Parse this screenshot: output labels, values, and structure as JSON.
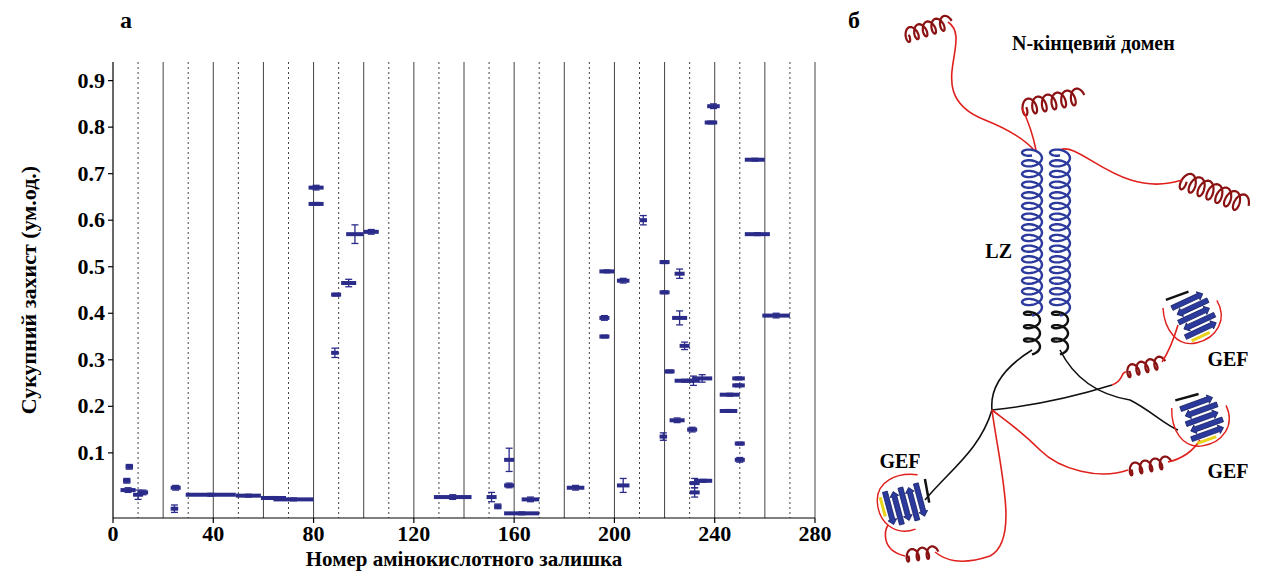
{
  "panel_labels": [
    "а",
    "б"
  ],
  "chart_data": {
    "type": "segment",
    "xlabel": "Номер амінокислотного залишка",
    "ylabel": "Сукупний захист (ум.од.)",
    "color": "#2b2b8a",
    "grid": true,
    "xlim": [
      0,
      280
    ],
    "ylim": [
      -0.04,
      0.94
    ],
    "xticks": [
      0,
      40,
      80,
      120,
      160,
      200,
      240,
      280
    ],
    "yticks": [
      0.1,
      0.2,
      0.3,
      0.4,
      0.5,
      0.6,
      0.7,
      0.8,
      0.9
    ],
    "x_start": [
      4,
      5,
      3,
      8,
      10,
      23,
      23,
      29,
      49,
      59,
      64,
      78,
      78,
      87,
      87,
      91,
      93,
      100,
      128,
      149,
      152,
      156,
      156,
      156,
      163,
      181,
      194,
      194,
      194,
      201,
      201,
      210,
      218,
      218,
      218,
      220,
      224,
      223,
      226,
      222,
      224,
      229,
      229,
      230,
      230,
      231,
      232,
      236,
      237,
      242,
      242,
      247,
      247,
      248,
      248,
      252,
      252,
      259
    ],
    "x_end": [
      7,
      8,
      9,
      12,
      14,
      27,
      26,
      49,
      59,
      69,
      80,
      84,
      84,
      90,
      91,
      97,
      100,
      106,
      143,
      153,
      155,
      160,
      160,
      170,
      170,
      188,
      198,
      198,
      200,
      206,
      206,
      213,
      222,
      222,
      221,
      224,
      228,
      229,
      230,
      228,
      232,
      234,
      233,
      234,
      234,
      239,
      239,
      241,
      242,
      250,
      249,
      252,
      252,
      252,
      252,
      260,
      262,
      270
    ],
    "values": [
      0.04,
      0.07,
      0.02,
      0.01,
      0.015,
      0.025,
      -0.02,
      0.01,
      0.008,
      0.003,
      0,
      0.67,
      0.635,
      0.315,
      0.44,
      0.465,
      0.57,
      0.575,
      0.005,
      0.005,
      -0.015,
      0.085,
      0.03,
      -0.03,
      0,
      0.025,
      0.39,
      0.35,
      0.49,
      0.47,
      0.03,
      0.6,
      0.51,
      0.445,
      0.135,
      0.275,
      0.485,
      0.39,
      0.33,
      0.17,
      0.255,
      0.255,
      0.15,
      0.035,
      0.015,
      0.26,
      0.04,
      0.81,
      0.845,
      0.225,
      0.19,
      0.26,
      0.245,
      0.12,
      0.085,
      0.73,
      0.57,
      0.395
    ],
    "errors": [
      0.005,
      0.005,
      0.005,
      0.01,
      0.005,
      0.005,
      0.008,
      0.003,
      0.003,
      0.003,
      0.003,
      0.005,
      0.003,
      0.01,
      0.003,
      0.008,
      0.02,
      0.005,
      0.005,
      0.01,
      0.005,
      0.025,
      0.005,
      0.003,
      0.005,
      0.005,
      0.005,
      0.003,
      0.003,
      0.005,
      0.015,
      0.01,
      0.003,
      0.003,
      0.008,
      0.003,
      0.01,
      0.015,
      0.008,
      0.005,
      0.003,
      0.01,
      0.005,
      0.01,
      0.01,
      0.008,
      0.003,
      0.003,
      0.005,
      0.003,
      0.003,
      0.003,
      0.003,
      0.003,
      0.005,
      0.003,
      0.003,
      0.005
    ]
  },
  "diagram": {
    "n_terminal_label": "N-кінцевий домен",
    "lz_label": "LZ",
    "gef_labels": [
      "GEF",
      "GEF",
      "GEF"
    ]
  }
}
